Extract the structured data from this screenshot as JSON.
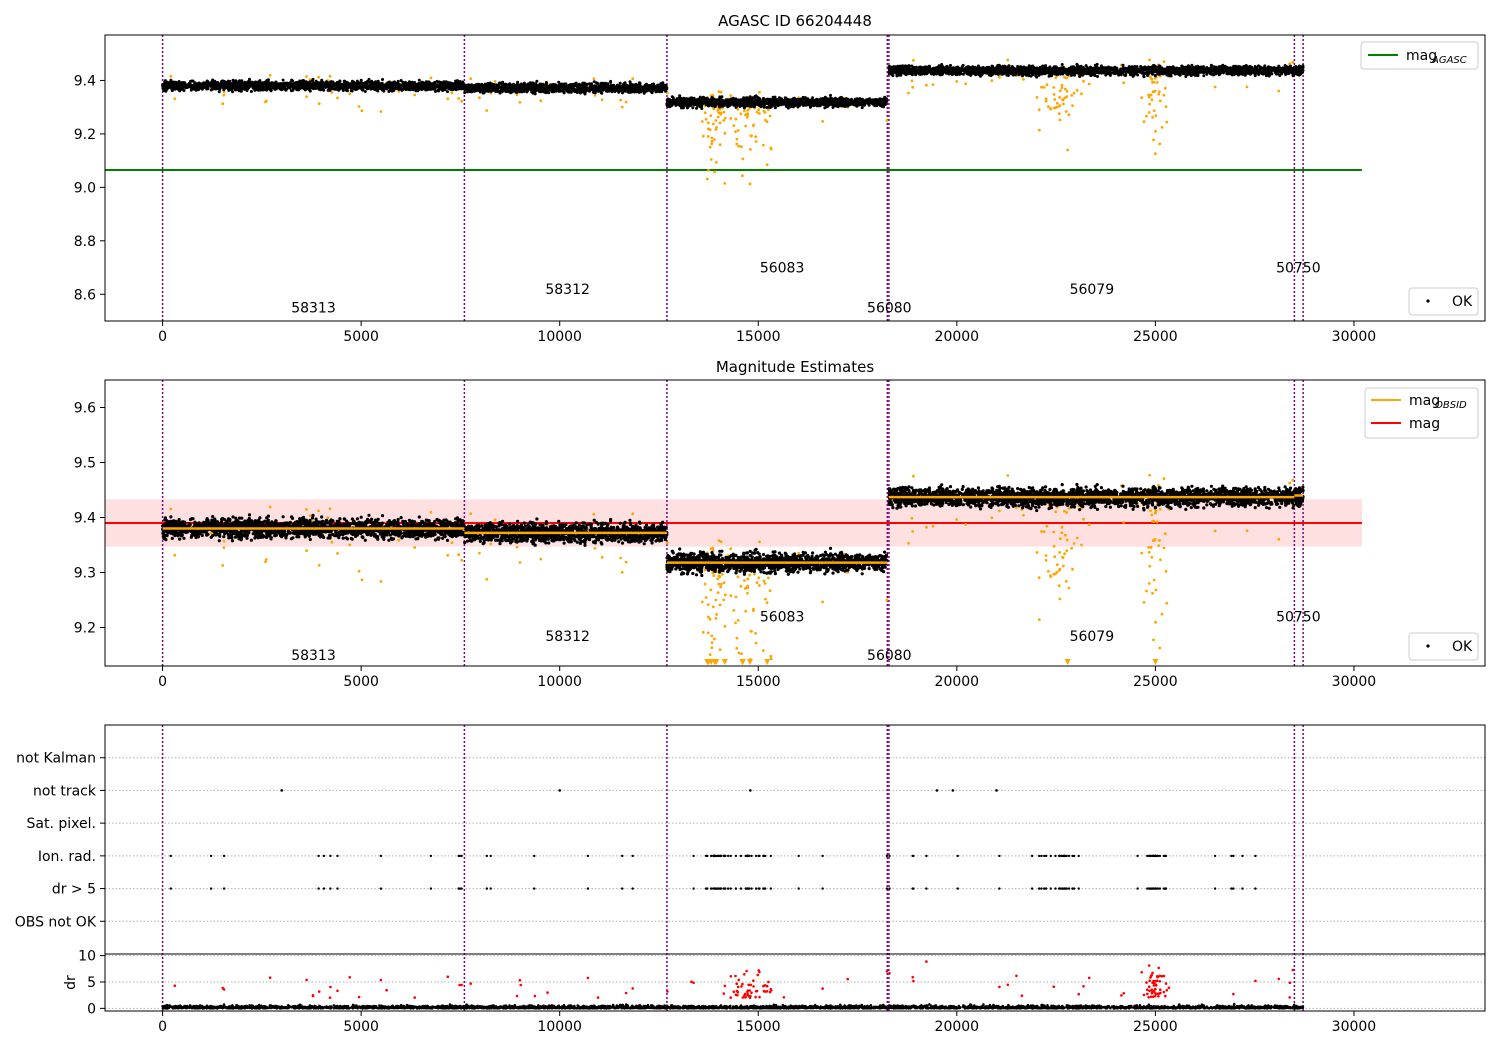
{
  "chart_data": [
    {
      "type": "scatter",
      "title": "AGASC ID 66204448",
      "xlim": [
        -1450,
        33300
      ],
      "ylim": [
        8.5,
        9.57
      ],
      "x_ticks": [
        0,
        5000,
        10000,
        15000,
        20000,
        25000,
        30000
      ],
      "y_ticks": [
        8.6,
        8.8,
        9.0,
        9.2,
        9.4
      ],
      "obsid_boundaries": [
        0,
        7600,
        12700,
        18250,
        18290,
        28500,
        28720
      ],
      "obsid_labels": [
        {
          "label": "58313",
          "x": 3800,
          "y": 8.55
        },
        {
          "label": "58312",
          "x": 10200,
          "y": 8.62
        },
        {
          "label": "56083",
          "x": 15600,
          "y": 8.7
        },
        {
          "label": "56080",
          "x": 18300,
          "y": 8.55
        },
        {
          "label": "56079",
          "x": 23400,
          "y": 8.62
        },
        {
          "label": "50750",
          "x": 28600,
          "y": 8.7
        }
      ],
      "segments": [
        {
          "x": [
            0,
            7600
          ],
          "level": 9.38,
          "spread": 0.012
        },
        {
          "x": [
            7600,
            12700
          ],
          "level": 9.372,
          "spread": 0.012
        },
        {
          "x": [
            12700,
            18250
          ],
          "level": 9.318,
          "spread": 0.012
        },
        {
          "x": [
            18290,
            28720
          ],
          "level": 9.437,
          "spread": 0.012
        }
      ],
      "reference_line": {
        "name": "mag_AGASC",
        "value": 9.065,
        "x": [
          -1450,
          30200
        ],
        "color": "#008000"
      },
      "legend": [
        "mag_AGASC",
        "OK"
      ],
      "legend_position": "upper-right / lower-right"
    },
    {
      "type": "scatter",
      "title": "Magnitude Estimates",
      "xlim": [
        -1450,
        33300
      ],
      "ylim": [
        9.13,
        9.65
      ],
      "x_ticks": [
        0,
        5000,
        10000,
        15000,
        20000,
        25000,
        30000
      ],
      "y_ticks": [
        9.2,
        9.3,
        9.4,
        9.5,
        9.6
      ],
      "obsid_labels": [
        {
          "label": "58313",
          "x": 3800,
          "y": 9.15
        },
        {
          "label": "58312",
          "x": 10200,
          "y": 9.185
        },
        {
          "label": "56083",
          "x": 15600,
          "y": 9.22
        },
        {
          "label": "56080",
          "x": 18300,
          "y": 9.15
        },
        {
          "label": "56079",
          "x": 23400,
          "y": 9.185
        },
        {
          "label": "50750",
          "x": 28600,
          "y": 9.22
        }
      ],
      "obsid_mag": [
        {
          "x": [
            0,
            7600
          ],
          "value": 9.38
        },
        {
          "x": [
            7600,
            12700
          ],
          "value": 9.372
        },
        {
          "x": [
            12700,
            18250
          ],
          "value": 9.318
        },
        {
          "x": [
            18290,
            28500
          ],
          "value": 9.437
        },
        {
          "x": [
            28500,
            28720
          ],
          "value": 9.44
        }
      ],
      "mag": {
        "value": 9.39,
        "band": [
          9.347,
          9.433
        ],
        "x": [
          -1450,
          30200
        ]
      },
      "legend": [
        "mag_OBSID",
        "mag",
        "OK"
      ]
    },
    {
      "type": "scatter",
      "xlim": [
        -1450,
        33300
      ],
      "x_ticks": [
        0,
        5000,
        10000,
        15000,
        20000,
        25000,
        30000
      ],
      "flag_rows": [
        "not Kalman",
        "not track",
        "Sat. pixel.",
        "Ion. rad.",
        "dr > 5",
        "OBS not OK"
      ],
      "not_track_x": [
        3000,
        10000,
        14800,
        19500,
        19900,
        21000
      ],
      "dr": {
        "ylabel": "dr",
        "ylim": [
          -0.5,
          10.3
        ],
        "y_ticks": [
          0,
          5,
          10
        ],
        "cap": 10
      }
    }
  ],
  "legend_labels": {
    "mag_agasc": "mag",
    "mag_agasc_sub": "AGASC",
    "mag_obsid": "mag",
    "mag_obsid_sub": "OBSID",
    "mag": "mag",
    "ok": "OK"
  },
  "colors": {
    "ok_points": "#000000",
    "outlier_points": "#FFA500",
    "flagged_points": "#FF0000",
    "obsid_boundary": "#800080",
    "agasc_line": "#008000",
    "mag_line": "#FF0000",
    "mag_band": "#FFE0E0",
    "obsid_line": "#FFA500"
  }
}
